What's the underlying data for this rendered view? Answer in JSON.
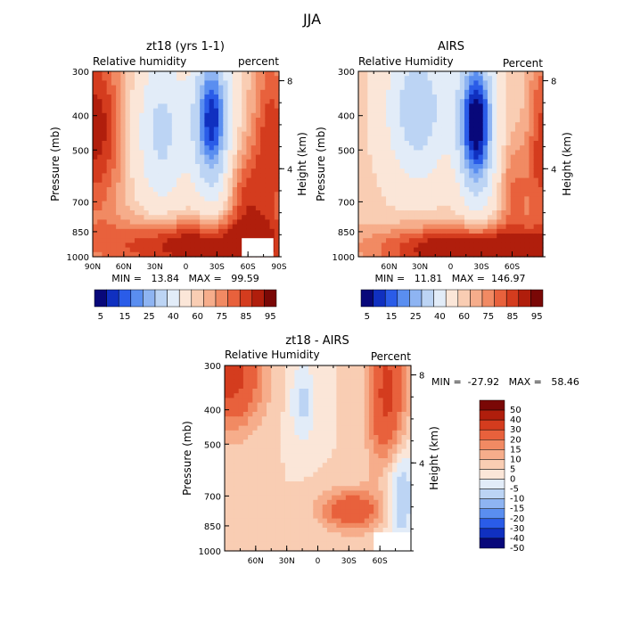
{
  "figure_title": "JJA",
  "chart_data": [
    {
      "type": "heatmap",
      "title": "zt18 (yrs 1-1)",
      "subtitle_left": "Relative humidity",
      "subtitle_right": "percent",
      "ylabel": "Pressure (mb)",
      "ylabel_right": "Height (km)",
      "x_ticks": [
        "90N",
        "60N",
        "30N",
        "0",
        "30S",
        "60S",
        "90S"
      ],
      "y_ticks": [
        "300",
        "400",
        "500",
        "700",
        "850",
        "1000"
      ],
      "y_ticks_right": [
        "8",
        "4"
      ],
      "stats": "MIN =   13.84   MAX =   99.59",
      "colorbar_labels": [
        "5",
        "15",
        "25",
        "40",
        "60",
        "75",
        "85",
        "95"
      ],
      "value_range": [
        13.84,
        99.59
      ]
    },
    {
      "type": "heatmap",
      "title": "AIRS",
      "subtitle_left": "Relative Humidity",
      "subtitle_right": "Percent",
      "ylabel": "Pressure (mb)",
      "ylabel_right": "Height (km)",
      "x_ticks": [
        "60N",
        "30N",
        "0",
        "30S",
        "60S"
      ],
      "y_ticks": [
        "300",
        "400",
        "500",
        "700",
        "850",
        "1000"
      ],
      "y_ticks_right": [
        "8",
        "4"
      ],
      "stats": "MIN =   11.81   MAX =  146.97",
      "colorbar_labels": [
        "5",
        "15",
        "25",
        "40",
        "60",
        "75",
        "85",
        "95"
      ],
      "value_range": [
        11.81,
        146.97
      ]
    },
    {
      "type": "heatmap",
      "title": "zt18 - AIRS",
      "subtitle_left": "Relative Humidity",
      "subtitle_right": "Percent",
      "ylabel": "Pressure (mb)",
      "ylabel_right": "Height (km)",
      "x_ticks": [
        "60N",
        "30N",
        "0",
        "30S",
        "60S"
      ],
      "y_ticks": [
        "300",
        "400",
        "500",
        "700",
        "850",
        "1000"
      ],
      "y_ticks_right": [
        "8",
        "4"
      ],
      "stats": "MIN =  -27.92   MAX =   58.46",
      "colorbar_labels": [
        "50",
        "40",
        "30",
        "20",
        "15",
        "10",
        "5",
        "0",
        "-5",
        "-10",
        "-15",
        "-20",
        "-30",
        "-40",
        "-50"
      ],
      "value_range": [
        -27.92,
        58.46
      ]
    }
  ],
  "colors": {
    "abs_scale": [
      "#08087a",
      "#1030c0",
      "#2a5ce8",
      "#5a8ef0",
      "#8eb4f2",
      "#bcd4f4",
      "#e2ecf8",
      "#fbe6d8",
      "#f9cdb3",
      "#f6ad8b",
      "#f18a63",
      "#e8613c",
      "#d43c1e",
      "#b01e0c",
      "#7a0806"
    ],
    "diff_scale": [
      "#7a0806",
      "#b01e0c",
      "#d43c1e",
      "#e8613c",
      "#f18a63",
      "#f6ad8b",
      "#f9cdb3",
      "#fbe6d8",
      "#e2ecf8",
      "#bcd4f4",
      "#8eb4f2",
      "#5a8ef0",
      "#2a5ce8",
      "#1030c0",
      "#08087a"
    ]
  }
}
